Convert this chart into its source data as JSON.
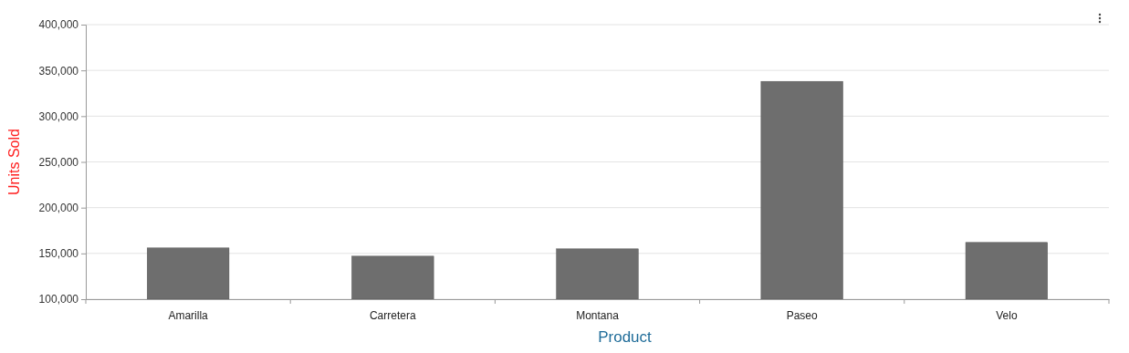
{
  "chart_data": {
    "type": "bar",
    "xlabel": "Product",
    "ylabel": "Units Sold",
    "categories": [
      "Amarilla",
      "Carretera",
      "Montana",
      "Paseo",
      "Velo"
    ],
    "values": [
      156000,
      147000,
      155000,
      338000,
      162000
    ],
    "color": "#6e6e6e",
    "ylim": [
      100000,
      400000
    ],
    "yticks": [
      {
        "value": 100000,
        "label": "100,000"
      },
      {
        "value": 150000,
        "label": "150,000"
      },
      {
        "value": 200000,
        "label": "200,000"
      },
      {
        "value": 250000,
        "label": "250,000"
      },
      {
        "value": 300000,
        "label": "300,000"
      },
      {
        "value": 350000,
        "label": "350,000"
      },
      {
        "value": 400000,
        "label": "400,000"
      }
    ],
    "grid": "y"
  }
}
